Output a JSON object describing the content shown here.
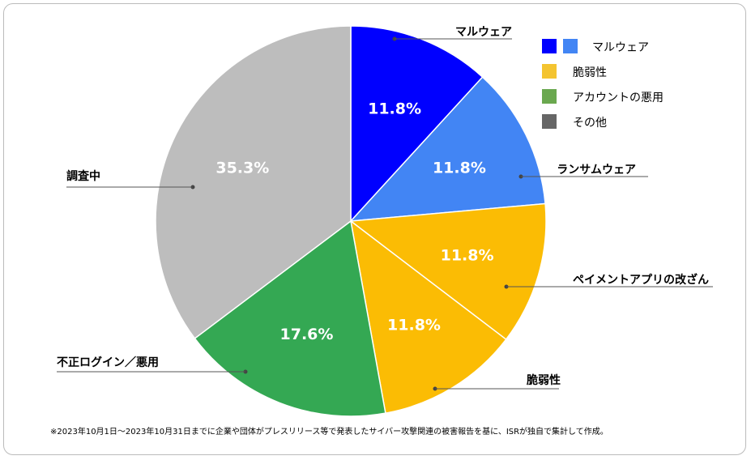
{
  "chart_data": {
    "type": "pie",
    "slices": [
      {
        "label": "マルウェア",
        "value": 11.8,
        "text": "11.8%",
        "color": "#0000ff"
      },
      {
        "label": "ランサムウェア",
        "value": 11.8,
        "text": "11.8%",
        "color": "#4285f4"
      },
      {
        "label": "ペイメントアプリの改ざん",
        "value": 11.8,
        "text": "11.8%",
        "color": "#fbbc04"
      },
      {
        "label": "脆弱性",
        "value": 11.8,
        "text": "11.8%",
        "color": "#fbbc04"
      },
      {
        "label": "不正ログイン／悪用",
        "value": 17.6,
        "text": "17.6%",
        "color": "#34a853"
      },
      {
        "label": "調査中",
        "value": 35.3,
        "text": "35.3%",
        "color": "#bdbdbd"
      }
    ],
    "legend": {
      "placement": "top-right",
      "entries": [
        {
          "label": "マルウェア",
          "colors": [
            "#0000ff",
            "#4285f4"
          ]
        },
        {
          "label": "脆弱性",
          "colors": [
            "#f4c430"
          ]
        },
        {
          "label": "アカウントの悪用",
          "colors": [
            "#6aa84f"
          ]
        },
        {
          "label": "その他",
          "colors": [
            "#666666"
          ]
        }
      ]
    },
    "note": "※2023年10月1日～2023年10月31日までに企業や団体がプレスリリース等で発表したサイバー攻撃関連の被害報告を基に、ISRが独自で集計して作成。"
  }
}
